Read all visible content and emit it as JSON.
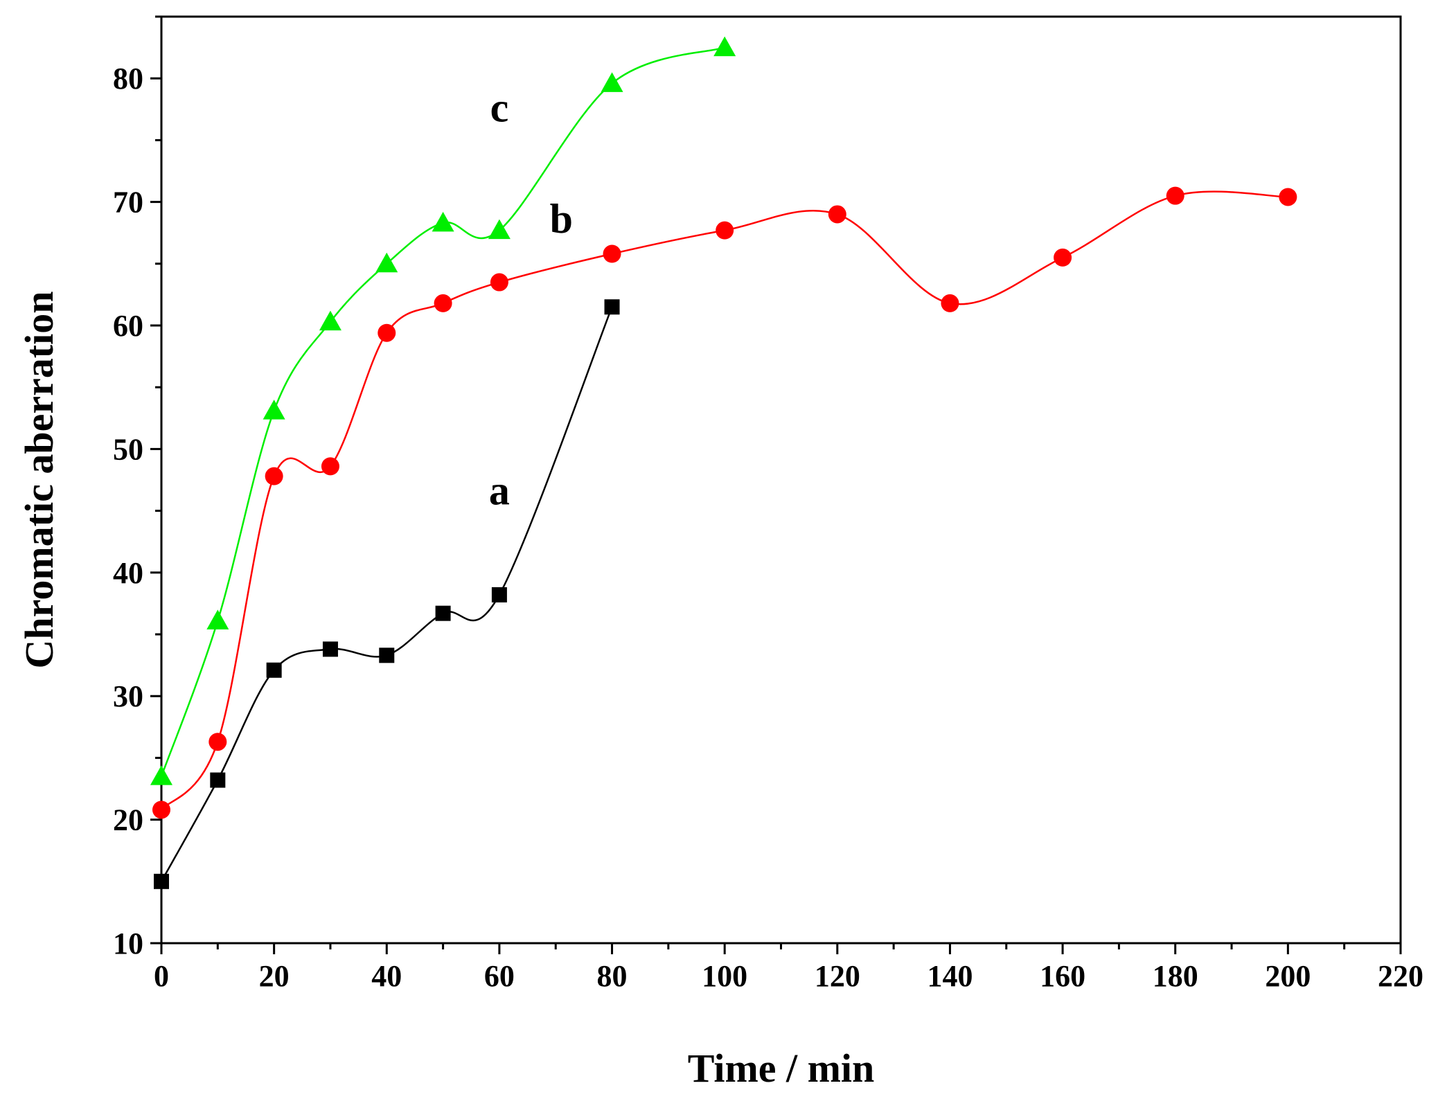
{
  "chart_data": {
    "type": "scatter",
    "title": "",
    "xlabel": "Time / min",
    "ylabel": "Chromatic aberration",
    "xlim": [
      0,
      220
    ],
    "ylim": [
      10,
      85
    ],
    "xticks": [
      0,
      20,
      40,
      60,
      80,
      100,
      120,
      140,
      160,
      180,
      200,
      220
    ],
    "xtick_labels": [
      "0",
      "20",
      "40",
      "60",
      "80",
      "100",
      "120",
      "140",
      "160",
      "180",
      "200",
      "220"
    ],
    "yticks": [
      10,
      20,
      30,
      40,
      50,
      60,
      70,
      80
    ],
    "ytick_labels": [
      "10",
      "20",
      "30",
      "40",
      "50",
      "60",
      "70",
      "80"
    ],
    "grid": false,
    "series": [
      {
        "name": "a",
        "color": "#000000",
        "marker": "square",
        "x": [
          0,
          10,
          20,
          30,
          40,
          50,
          60,
          80
        ],
        "y": [
          15.0,
          23.2,
          32.1,
          33.8,
          33.3,
          36.7,
          38.2,
          61.5
        ],
        "label_at": [
          60,
          45.5
        ]
      },
      {
        "name": "b",
        "color": "#ff0000",
        "marker": "circle",
        "x": [
          0,
          10,
          20,
          30,
          40,
          50,
          60,
          80,
          100,
          120,
          140,
          160,
          180,
          200
        ],
        "y": [
          20.8,
          26.3,
          47.8,
          48.6,
          59.4,
          61.8,
          63.5,
          65.8,
          67.7,
          69.0,
          61.8,
          65.5,
          70.5,
          70.4
        ],
        "label_at": [
          71,
          67.5
        ]
      },
      {
        "name": "c",
        "color": "#00ee00",
        "marker": "triangle",
        "x": [
          0,
          10,
          20,
          30,
          40,
          50,
          60,
          80,
          100
        ],
        "y": [
          23.5,
          36.1,
          53.1,
          60.3,
          65.0,
          68.3,
          67.7,
          79.6,
          82.5
        ],
        "label_at": [
          60,
          76.5
        ]
      }
    ]
  }
}
